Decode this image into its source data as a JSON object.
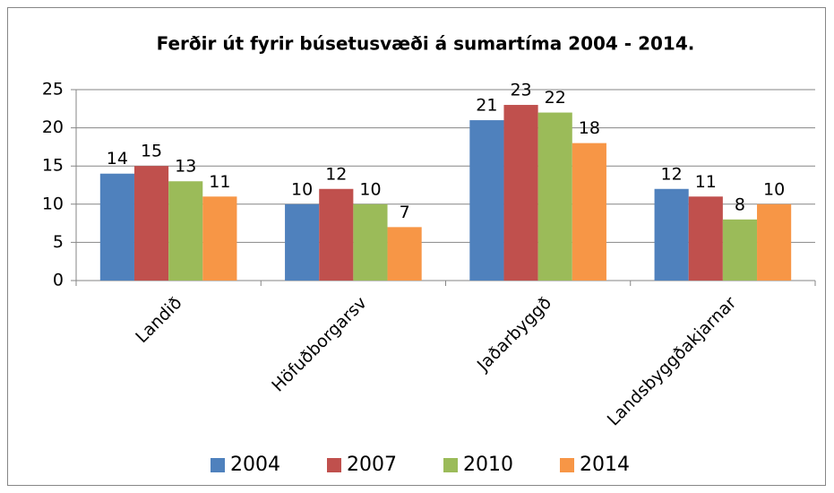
{
  "chart_data": {
    "type": "bar",
    "title": "Ferðir út fyrir búsetusvæði á sumartíma 2004 - 2014.",
    "categories": [
      "Landið",
      "Höfuðborgarsv",
      "Jaðarbyggð",
      "Landsbyggðakjarnar"
    ],
    "series": [
      {
        "name": "2004",
        "color": "#4f81bd",
        "values": [
          14,
          10,
          21,
          12
        ]
      },
      {
        "name": "2007",
        "color": "#c0504d",
        "values": [
          15,
          12,
          23,
          11
        ]
      },
      {
        "name": "2010",
        "color": "#9bbb59",
        "values": [
          13,
          10,
          22,
          8
        ]
      },
      {
        "name": "2014",
        "color": "#f79646",
        "values": [
          11,
          7,
          18,
          10
        ]
      }
    ],
    "ylim": [
      0,
      25
    ],
    "yticks": [
      0,
      5,
      10,
      15,
      20,
      25
    ],
    "grid": true,
    "legend": "bottom"
  }
}
